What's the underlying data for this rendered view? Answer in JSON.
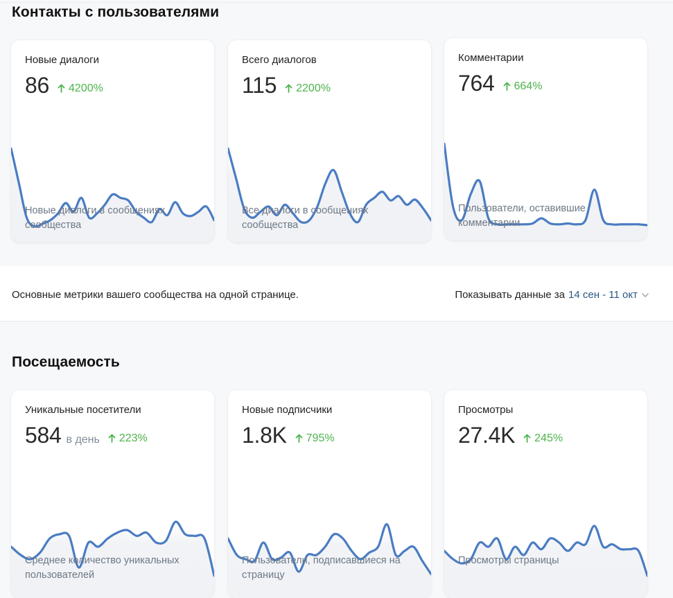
{
  "sections": {
    "contacts": {
      "title": "Контакты с пользователями"
    },
    "attendance": {
      "title": "Посещаемость"
    }
  },
  "toolbar": {
    "description": "Основные метрики вашего сообщества на одной странице.",
    "period_label": "Показывать данные за",
    "period_range": "14 сен - 11 окт"
  },
  "colors": {
    "accent": "#4a7cc2",
    "growth": "#4bb34b",
    "link": "#2a5885"
  },
  "cards": [
    {
      "title": "Новые диалоги",
      "value": "86",
      "unit": "",
      "growth": "4200%",
      "description": "Новые диалоги в сообщениях сообщества",
      "series": [
        0.95,
        0.55,
        0.15,
        0.05,
        0.08,
        0.12,
        0.2,
        0.32,
        0.22,
        0.38,
        0.15,
        0.2,
        0.3,
        0.42,
        0.38,
        0.35,
        0.22,
        0.15,
        0.1,
        0.25,
        0.18,
        0.33,
        0.2,
        0.17,
        0.22,
        0.28,
        0.12
      ]
    },
    {
      "title": "Всего диалогов",
      "value": "115",
      "unit": "",
      "growth": "2200%",
      "description": "Все диалоги в сообщениях сообщества",
      "series": [
        0.95,
        0.6,
        0.25,
        0.15,
        0.22,
        0.28,
        0.18,
        0.3,
        0.2,
        0.1,
        0.12,
        0.28,
        0.55,
        0.7,
        0.45,
        0.2,
        0.1,
        0.3,
        0.38,
        0.45,
        0.35,
        0.4,
        0.3,
        0.36,
        0.26,
        0.12
      ]
    },
    {
      "title": "Комментарии",
      "value": "764",
      "unit": "",
      "growth": "664%",
      "description": "Пользователи, оставившие комментарии",
      "series": [
        0.98,
        0.25,
        0.1,
        0.4,
        0.55,
        0.12,
        0.05,
        0.05,
        0.05,
        0.05,
        0.06,
        0.12,
        0.06,
        0.05,
        0.06,
        0.05,
        0.1,
        0.45,
        0.1,
        0.05,
        0.05,
        0.05,
        0.05,
        0.04
      ]
    },
    {
      "title": "Уникальные посетители",
      "value": "584",
      "unit": "в день",
      "growth": "223%",
      "description": "Среднее количество уникальных пользователей",
      "series": [
        0.45,
        0.35,
        0.3,
        0.38,
        0.55,
        0.6,
        0.58,
        0.2,
        0.5,
        0.45,
        0.55,
        0.62,
        0.65,
        0.58,
        0.62,
        0.5,
        0.52,
        0.75,
        0.6,
        0.58,
        0.55,
        0.1
      ]
    },
    {
      "title": "Новые подписчики",
      "value": "1.8K",
      "unit": "",
      "growth": "795%",
      "description": "Пользователи, подписавшиеся на страницу",
      "series": [
        0.55,
        0.35,
        0.3,
        0.28,
        0.5,
        0.3,
        0.32,
        0.38,
        0.15,
        0.35,
        0.35,
        0.45,
        0.6,
        0.55,
        0.4,
        0.3,
        0.38,
        0.45,
        0.72,
        0.35,
        0.4,
        0.45,
        0.28,
        0.12
      ]
    },
    {
      "title": "Просмотры",
      "value": "27.4K",
      "unit": "",
      "growth": "245%",
      "description": "Просмотры страницы",
      "series": [
        0.4,
        0.3,
        0.25,
        0.3,
        0.5,
        0.45,
        0.55,
        0.3,
        0.45,
        0.35,
        0.5,
        0.42,
        0.55,
        0.5,
        0.4,
        0.5,
        0.48,
        0.7,
        0.45,
        0.48,
        0.42,
        0.42,
        0.4,
        0.1
      ]
    }
  ]
}
